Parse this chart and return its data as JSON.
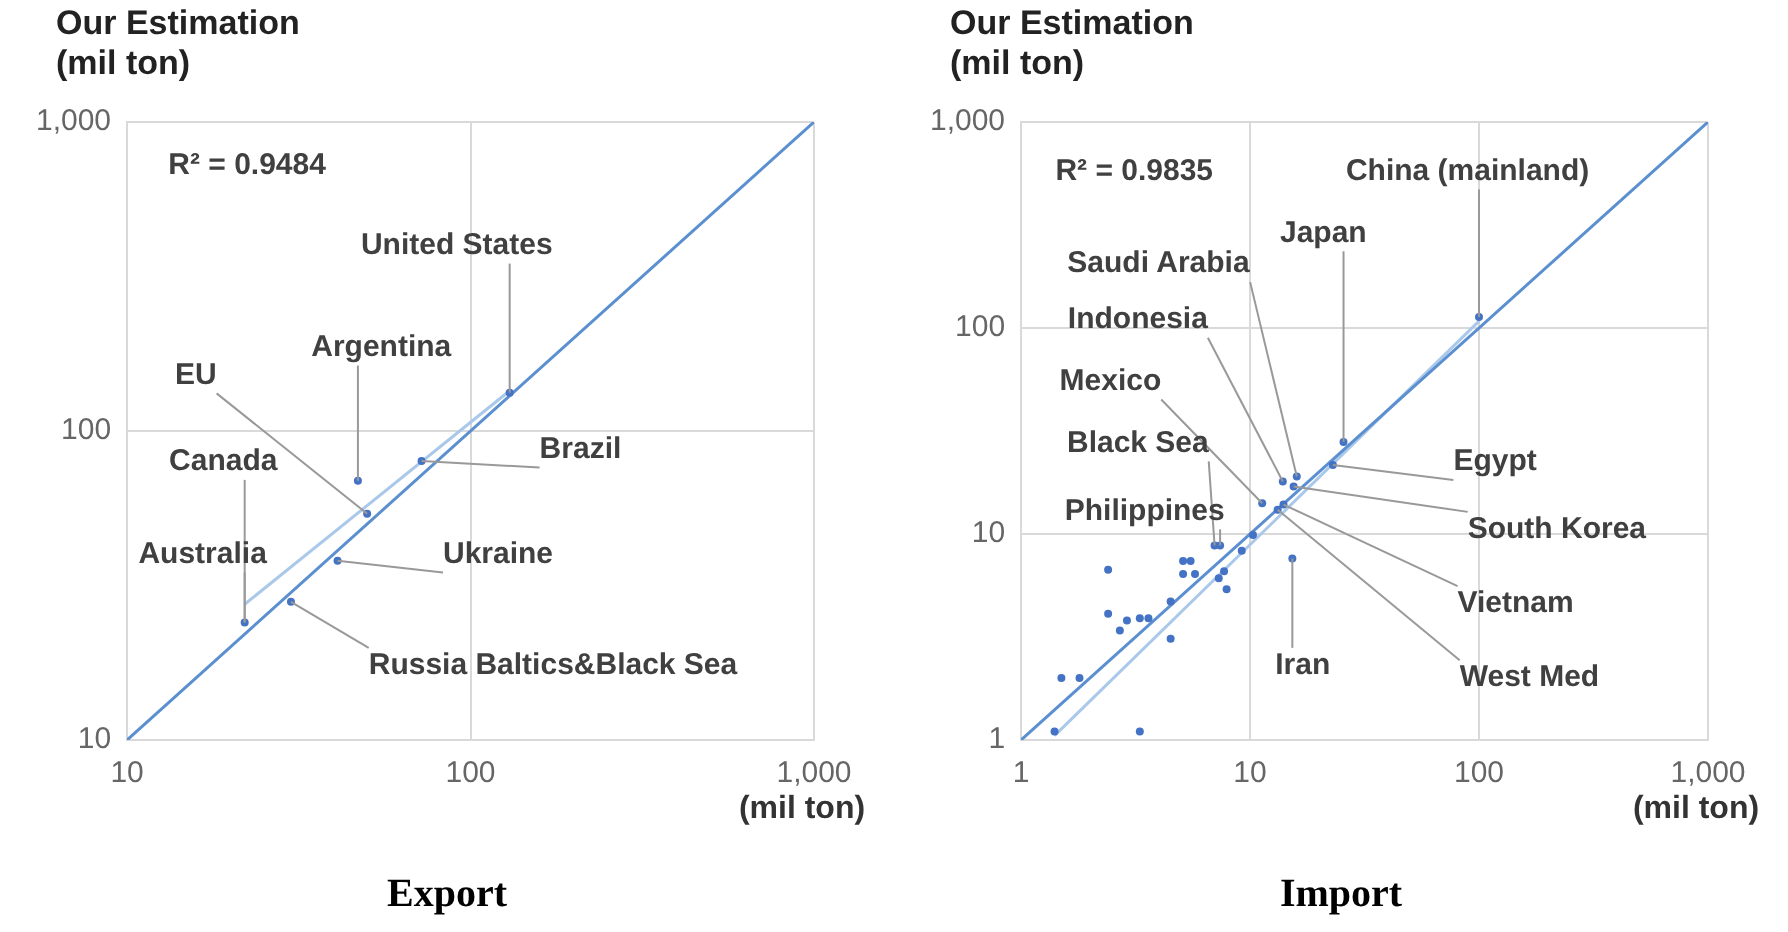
{
  "chart_data": [
    {
      "type": "scatter",
      "title": "Export",
      "xlabel": "(mil ton)",
      "ylabel": "Our Estimation (mil ton)",
      "log": "xy",
      "grid": true,
      "legend": false,
      "marker": "circle",
      "xlim": [
        10,
        1000
      ],
      "ylim": [
        10,
        1000
      ],
      "xticks": [
        10,
        100,
        {
          "value": 1000,
          "label": "1,000"
        }
      ],
      "yticks": [
        10,
        100,
        {
          "value": 1000,
          "label": "1,000"
        }
      ],
      "series": [
        {
          "type": "scatter",
          "color": "#4472c4",
          "x": [
            130,
            72,
            47,
            50,
            41,
            30,
            22
          ],
          "values": [
            133,
            80,
            69,
            54,
            38,
            28,
            24
          ]
        },
        {
          "type": "line",
          "color": "#5b8fd0",
          "marker": "none",
          "x": [
            10,
            1000
          ],
          "values": [
            10,
            1000
          ]
        },
        {
          "type": "line",
          "color": "#a9c8ea",
          "marker": "none",
          "x": [
            22,
            130
          ],
          "values": [
            27.5,
            135
          ]
        }
      ],
      "annotations": [
        "R² = 0.9484",
        {
          "text": "United States",
          "x": 130,
          "y": 133
        },
        {
          "text": "Argentina",
          "x": 47,
          "y": 69
        },
        {
          "text": "EU",
          "x": 50,
          "y": 54
        },
        {
          "text": "Brazil",
          "x": 72,
          "y": 80
        },
        {
          "text": "Canada",
          "x": 22,
          "y": 24
        },
        {
          "text": "Australia",
          "x": 22,
          "y": 24
        },
        {
          "text": "Ukraine",
          "x": 41,
          "y": 38
        },
        {
          "text": "Russia Baltics&Black Sea",
          "x": 30,
          "y": 28
        }
      ]
    },
    {
      "type": "scatter",
      "title": "Import",
      "xlabel": "(mil ton)",
      "ylabel": "Our Estimation (mil ton)",
      "log": "xy",
      "grid": true,
      "legend": false,
      "marker": "circle",
      "xlim": [
        1,
        1000
      ],
      "ylim": [
        1,
        1000
      ],
      "xticks": [
        1,
        10,
        100,
        {
          "value": 1000,
          "label": "1,000"
        }
      ],
      "yticks": [
        1,
        10,
        100,
        {
          "value": 1000,
          "label": "1,000"
        }
      ],
      "series": [
        {
          "type": "scatter",
          "color": "#4472c4",
          "x": [
            100,
            25.6,
            23,
            16,
            13.9,
            15.5,
            14,
            13.2,
            11.3,
            15.3,
            10.3,
            9.2,
            7.0,
            7.4,
            5.1,
            5.5,
            5.1,
            5.75,
            7.7,
            7.3,
            7.9,
            2.4,
            2.4,
            2.7,
            2.9,
            3.3,
            3.6,
            4.5,
            4.5,
            1.5,
            1.8,
            1.4,
            3.3
          ],
          "values": [
            113,
            28,
            21.6,
            19,
            18,
            17,
            13.9,
            13.1,
            14.1,
            7.6,
            9.9,
            8.3,
            8.8,
            8.8,
            7.4,
            7.4,
            6.4,
            6.4,
            6.6,
            6.1,
            5.4,
            6.7,
            4.1,
            3.4,
            3.8,
            3.9,
            3.9,
            4.7,
            3.1,
            2.0,
            2.0,
            1.1,
            1.1
          ]
        },
        {
          "type": "line",
          "color": "#5b8fd0",
          "marker": "none",
          "x": [
            1,
            1000
          ],
          "values": [
            1,
            1000
          ]
        },
        {
          "type": "line",
          "color": "#a9c8ea",
          "marker": "none",
          "x": [
            1.4,
            100
          ],
          "values": [
            1.05,
            108
          ]
        }
      ],
      "annotations": [
        "R² = 0.9835",
        {
          "text": "China (mainland)",
          "x": 100,
          "y": 113
        },
        {
          "text": "Japan",
          "x": 25.6,
          "y": 28
        },
        {
          "text": "Saudi Arabia",
          "x": 16,
          "y": 19
        },
        {
          "text": "Indonesia",
          "x": 13.9,
          "y": 18
        },
        {
          "text": "Mexico",
          "x": 11.3,
          "y": 14.1
        },
        {
          "text": "Black Sea",
          "x": 7.0,
          "y": 8.8
        },
        {
          "text": "Philippines",
          "x": 7.4,
          "y": 8.8
        },
        {
          "text": "Egypt",
          "x": 23,
          "y": 21.6
        },
        {
          "text": "South Korea",
          "x": 15.5,
          "y": 17
        },
        {
          "text": "Vietnam",
          "x": 14,
          "y": 13.9
        },
        {
          "text": "Iran",
          "x": 15.3,
          "y": 7.6
        },
        {
          "text": "West Med",
          "x": 13.2,
          "y": 13.1
        }
      ]
    }
  ]
}
